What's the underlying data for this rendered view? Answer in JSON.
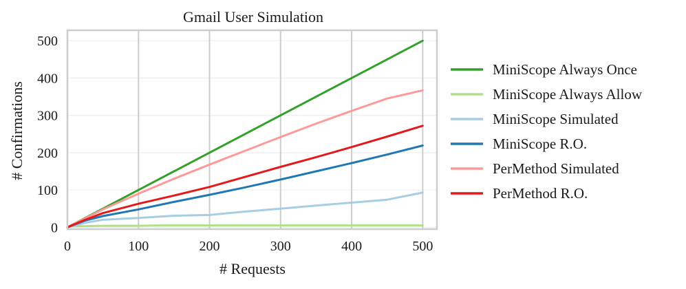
{
  "chart_data": {
    "type": "line",
    "title": "Gmail User Simulation",
    "xlabel": "# Requests",
    "ylabel": "# Confirmations",
    "xlim": [
      0,
      520
    ],
    "ylim": [
      -5,
      528
    ],
    "xticks": [
      0,
      100,
      200,
      300,
      400,
      500
    ],
    "yticks": [
      0,
      100,
      200,
      300,
      400,
      500
    ],
    "grid": true,
    "legend_position": "right-outside",
    "series": [
      {
        "name": "MiniScope Always Once",
        "color": "#33a02c",
        "x": [
          0,
          500
        ],
        "y": [
          0,
          500
        ]
      },
      {
        "name": "MiniScope Always Allow",
        "color": "#b2df8a",
        "x": [
          0,
          5,
          10,
          25,
          50,
          100,
          130,
          200,
          300,
          400,
          500
        ],
        "y": [
          0,
          2,
          3,
          3,
          4,
          4,
          5,
          5,
          5,
          5,
          5
        ]
      },
      {
        "name": "MiniScope Simulated",
        "color": "#a6cee3",
        "x": [
          0,
          25,
          50,
          100,
          150,
          200,
          250,
          300,
          350,
          400,
          450,
          500
        ],
        "y": [
          0,
          12,
          20,
          25,
          31,
          33,
          42,
          50,
          58,
          66,
          74,
          93
        ]
      },
      {
        "name": "MiniScope R.O.",
        "color": "#1f78b4",
        "x": [
          0,
          25,
          50,
          100,
          150,
          200,
          250,
          300,
          350,
          400,
          450,
          500
        ],
        "y": [
          0,
          18,
          30,
          48,
          68,
          87,
          107,
          128,
          150,
          172,
          195,
          219
        ]
      },
      {
        "name": "PerMethod Simulated",
        "color": "#fb9a99",
        "x": [
          0,
          25,
          50,
          100,
          150,
          200,
          250,
          300,
          350,
          400,
          450,
          500
        ],
        "y": [
          0,
          24,
          48,
          90,
          130,
          168,
          205,
          242,
          278,
          312,
          345,
          367
        ]
      },
      {
        "name": "PerMethod R.O.",
        "color": "#e31a1c",
        "x": [
          0,
          25,
          50,
          100,
          150,
          200,
          250,
          300,
          350,
          400,
          450,
          500
        ],
        "y": [
          0,
          20,
          38,
          63,
          85,
          108,
          135,
          162,
          188,
          215,
          243,
          272
        ]
      }
    ]
  }
}
